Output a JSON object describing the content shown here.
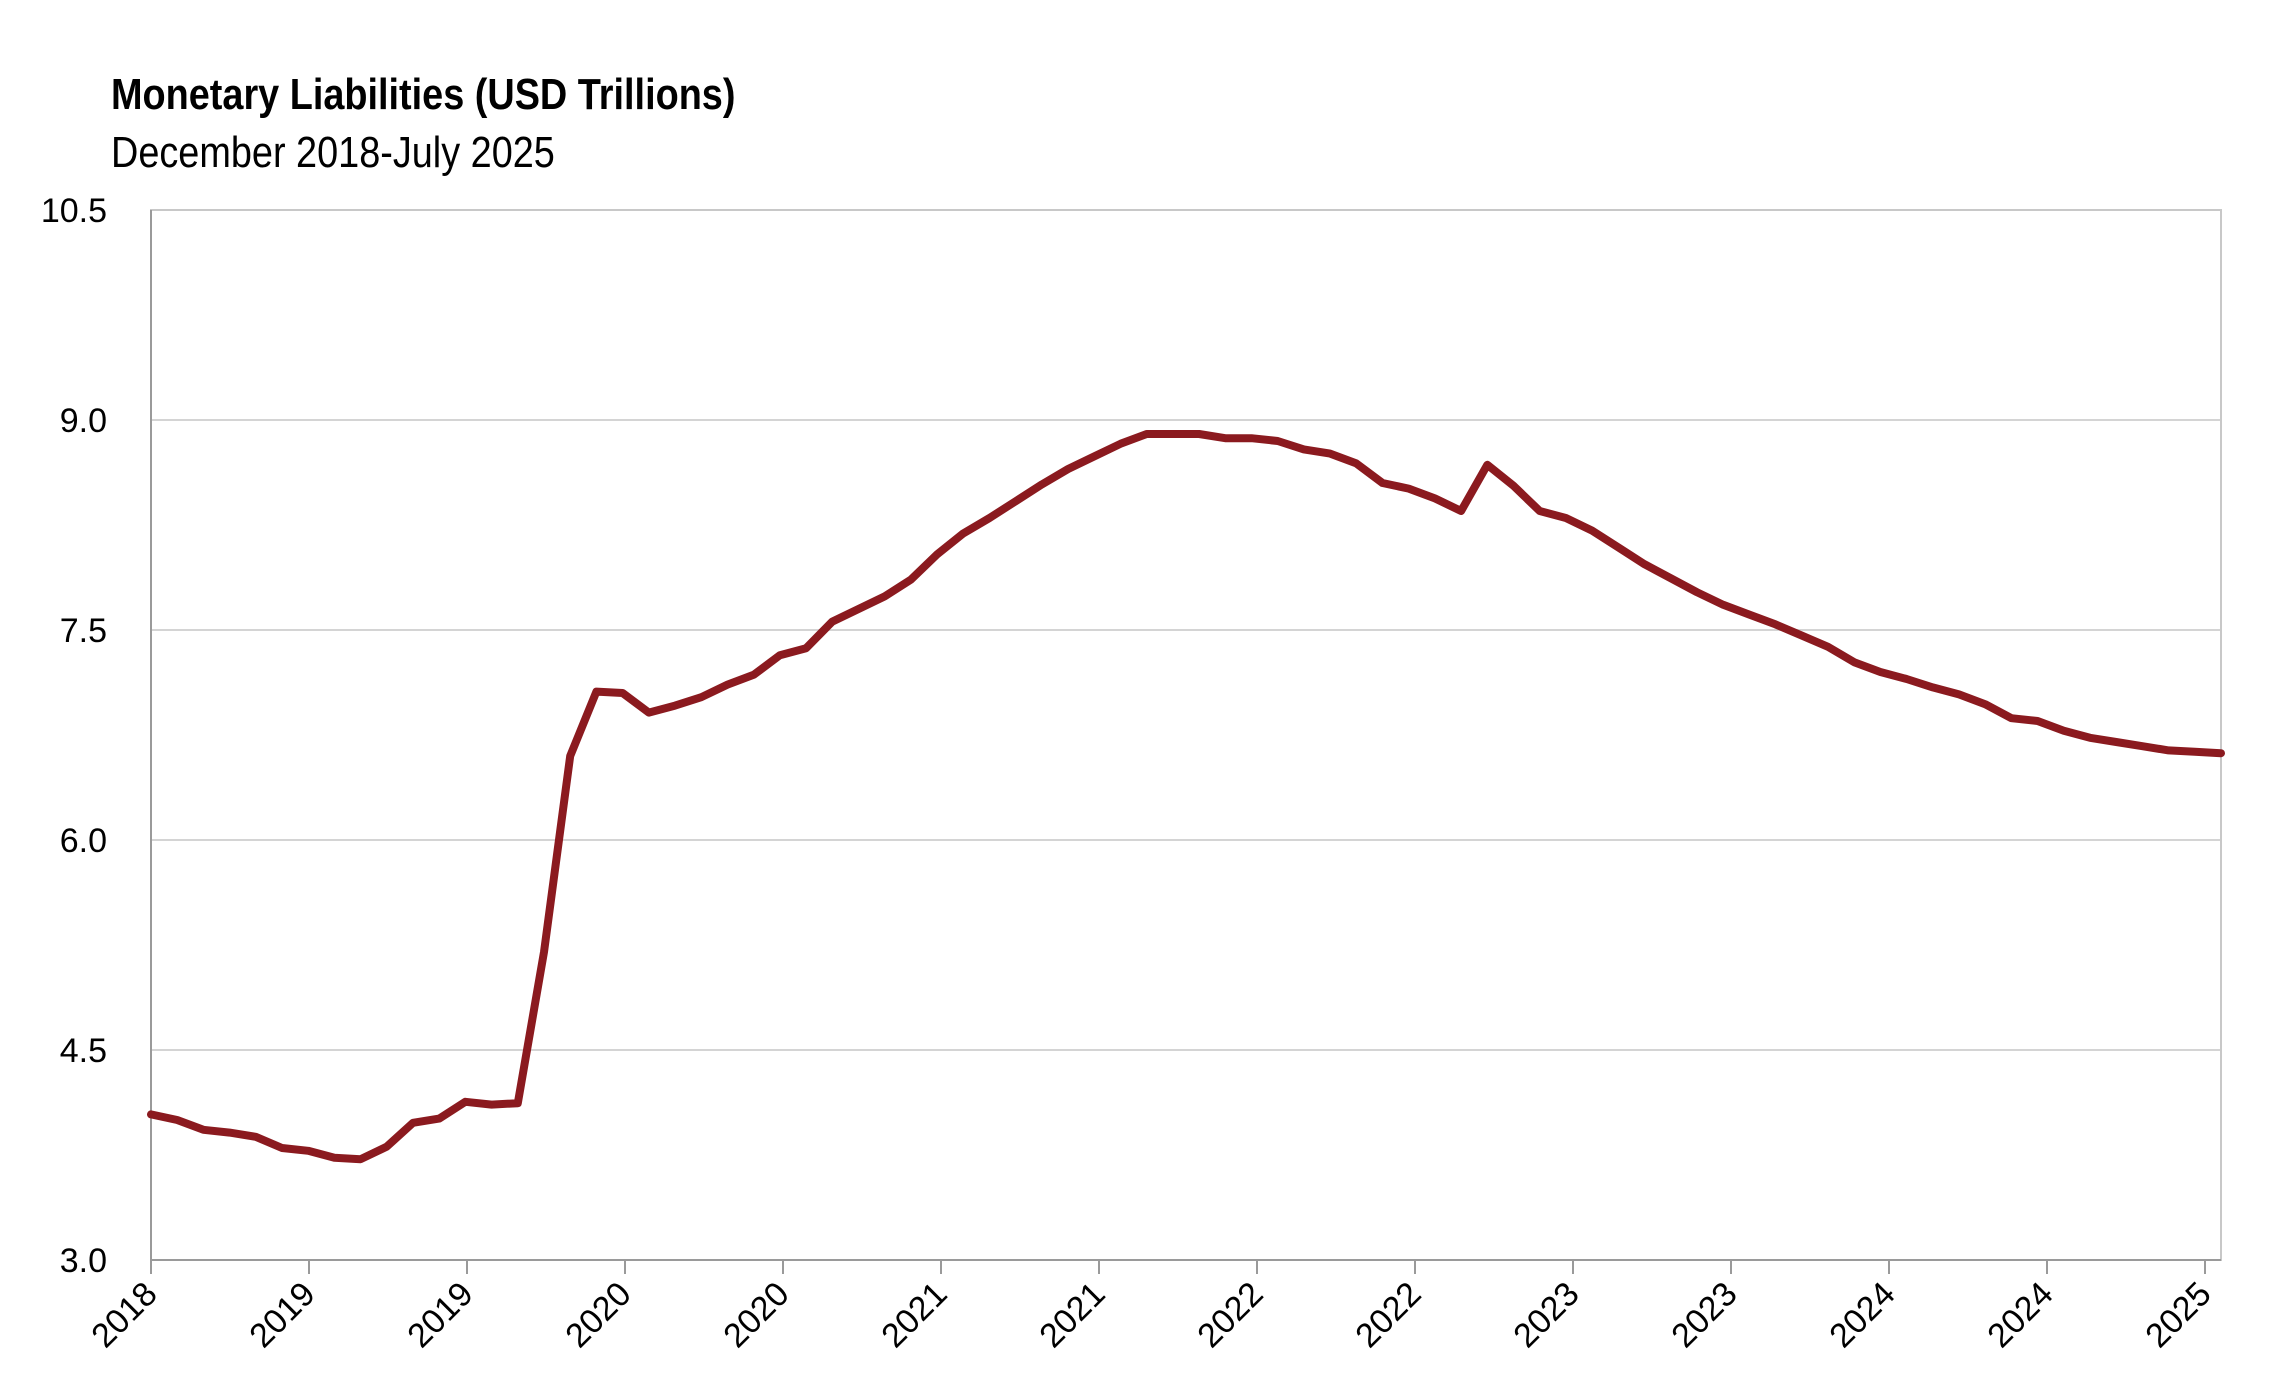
{
  "chart_data": {
    "type": "line",
    "title": "Monetary Liabilities (USD Trillions)",
    "subtitle": "December 2018-July 2025",
    "xlabel": "",
    "ylabel": "",
    "ylim": [
      3.0,
      10.5
    ],
    "yticks": [
      "3.0",
      "4.5",
      "6.0",
      "7.5",
      "9.0",
      "10.5"
    ],
    "xtick_labels": [
      "2018",
      "2019",
      "2019",
      "2020",
      "2020",
      "2021",
      "2021",
      "2022",
      "2022",
      "2023",
      "2023",
      "2024",
      "2024",
      "2025"
    ],
    "grid": true,
    "line_color": "#8B1A1F",
    "series": [
      {
        "x": [
          "2018-12",
          "2019-01",
          "2019-02",
          "2019-03",
          "2019-04",
          "2019-05",
          "2019-06",
          "2019-07",
          "2019-08",
          "2019-09",
          "2019-10",
          "2019-11",
          "2019-12",
          "2020-01",
          "2020-02",
          "2020-03",
          "2020-04",
          "2020-05",
          "2020-06",
          "2020-07",
          "2020-08",
          "2020-09",
          "2020-10",
          "2020-11",
          "2020-12",
          "2021-01",
          "2021-02",
          "2021-03",
          "2021-04",
          "2021-05",
          "2021-06",
          "2021-07",
          "2021-08",
          "2021-09",
          "2021-10",
          "2021-11",
          "2021-12",
          "2022-01",
          "2022-02",
          "2022-03",
          "2022-04",
          "2022-05",
          "2022-06",
          "2022-07",
          "2022-08",
          "2022-09",
          "2022-10",
          "2022-11",
          "2022-12",
          "2023-01",
          "2023-02",
          "2023-03",
          "2023-04",
          "2023-05",
          "2023-06",
          "2023-07",
          "2023-08",
          "2023-09",
          "2023-10",
          "2023-11",
          "2023-12",
          "2024-01",
          "2024-02",
          "2024-03",
          "2024-04",
          "2024-05",
          "2024-06",
          "2024-07",
          "2024-08",
          "2024-09",
          "2024-10",
          "2024-11",
          "2024-12",
          "2025-01",
          "2025-02",
          "2025-03",
          "2025-04",
          "2025-05",
          "2025-06",
          "2025-07"
        ],
        "values": [
          4.04,
          4.0,
          3.93,
          3.91,
          3.88,
          3.8,
          3.78,
          3.73,
          3.72,
          3.81,
          3.98,
          4.01,
          4.13,
          4.11,
          4.12,
          5.2,
          6.6,
          7.06,
          7.05,
          6.91,
          6.96,
          7.02,
          7.11,
          7.18,
          7.32,
          7.37,
          7.56,
          7.65,
          7.74,
          7.86,
          8.04,
          8.19,
          8.3,
          8.42,
          8.54,
          8.65,
          8.74,
          8.83,
          8.9,
          8.9,
          8.9,
          8.87,
          8.87,
          8.85,
          8.79,
          8.76,
          8.69,
          8.55,
          8.51,
          8.44,
          8.35,
          8.68,
          8.53,
          8.35,
          8.3,
          8.21,
          8.09,
          7.97,
          7.87,
          7.77,
          7.68,
          7.61,
          7.54,
          7.46,
          7.38,
          7.27,
          7.2,
          7.15,
          7.09,
          7.04,
          6.97,
          6.87,
          6.85,
          6.78,
          6.73,
          6.7,
          6.67,
          6.64,
          6.63,
          6.62
        ]
      }
    ]
  }
}
